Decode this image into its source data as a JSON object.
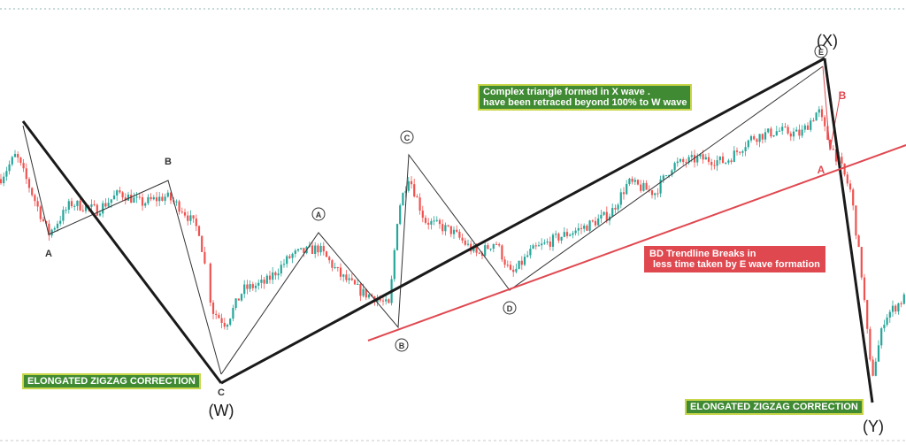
{
  "chart_data": {
    "type": "candlestick",
    "title": "",
    "xlabel": "",
    "ylabel": "",
    "grid": false,
    "colors": {
      "up": "#26a69a",
      "down": "#ef5350",
      "trend_red": "#e04850",
      "note_green": "#3f8a32",
      "note_green_border": "#c9d64a"
    },
    "price_path": [
      [
        0,
        320
      ],
      [
        18,
        355
      ],
      [
        36,
        300
      ],
      [
        55,
        240
      ],
      [
        80,
        285
      ],
      [
        110,
        275
      ],
      [
        135,
        300
      ],
      [
        160,
        285
      ],
      [
        188,
        295
      ],
      [
        205,
        278
      ],
      [
        225,
        245
      ],
      [
        240,
        130
      ],
      [
        255,
        110
      ],
      [
        275,
        160
      ],
      [
        300,
        170
      ],
      [
        330,
        210
      ],
      [
        360,
        220
      ],
      [
        385,
        180
      ],
      [
        410,
        155
      ],
      [
        425,
        148
      ],
      [
        440,
        135
      ],
      [
        450,
        275
      ],
      [
        462,
        325
      ],
      [
        480,
        260
      ],
      [
        510,
        245
      ],
      [
        540,
        210
      ],
      [
        560,
        230
      ],
      [
        578,
        180
      ],
      [
        600,
        215
      ],
      [
        630,
        235
      ],
      [
        660,
        250
      ],
      [
        690,
        270
      ],
      [
        710,
        315
      ],
      [
        740,
        300
      ],
      [
        760,
        340
      ],
      [
        790,
        350
      ],
      [
        820,
        345
      ],
      [
        850,
        380
      ],
      [
        880,
        390
      ],
      [
        905,
        385
      ],
      [
        925,
        420
      ],
      [
        935,
        380
      ],
      [
        950,
        340
      ],
      [
        962,
        300
      ],
      [
        975,
        170
      ],
      [
        985,
        30
      ],
      [
        1000,
        120
      ],
      [
        1024,
        150
      ]
    ],
    "waves": [
      {
        "label": "A",
        "style": "plain"
      },
      {
        "label": "B",
        "style": "plain"
      },
      {
        "label": "C",
        "style": "plain"
      },
      {
        "label": "(W)",
        "style": "paren"
      },
      {
        "label": "A",
        "style": "circled"
      },
      {
        "label": "B",
        "style": "circled"
      },
      {
        "label": "C",
        "style": "circled"
      },
      {
        "label": "D",
        "style": "circled"
      },
      {
        "label": "E",
        "style": "circled"
      },
      {
        "label": "(X)",
        "style": "paren"
      },
      {
        "label": "A",
        "style": "red"
      },
      {
        "label": "B",
        "style": "red"
      },
      {
        "label": "(Y)",
        "style": "paren"
      }
    ],
    "annotations": {
      "triangle_note": [
        "Complex triangle formed in X wave .",
        "have been retraced beyond 100% to W wave"
      ],
      "trendline_note": [
        "BD Trendline Breaks in",
        "less time taken by E wave formation"
      ],
      "zigzag_note_1": "ELONGATED ZIGZAG CORRECTION",
      "zigzag_note_2": "ELONGATED ZIGZAG CORRECTION"
    }
  }
}
